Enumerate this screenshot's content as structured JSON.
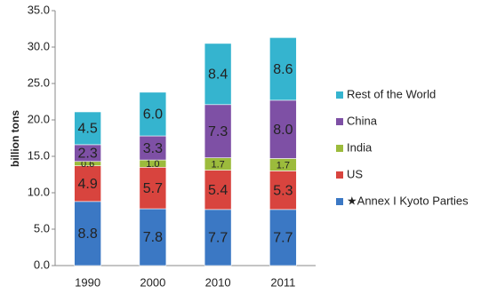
{
  "chart_data": {
    "type": "stacked_bar",
    "y_label": "billion tons",
    "categories": [
      "1990",
      "2000",
      "2010",
      "2011"
    ],
    "ylim": [
      0,
      35
    ],
    "yticks": [
      {
        "value": 0,
        "label": "0.0"
      },
      {
        "value": 5,
        "label": "5.0"
      },
      {
        "value": 10,
        "label": "10.0"
      },
      {
        "value": 15,
        "label": "15.0"
      },
      {
        "value": 20,
        "label": "20.0"
      },
      {
        "value": 25,
        "label": "25.0"
      },
      {
        "value": 30,
        "label": "30.0"
      },
      {
        "value": 35,
        "label": "35.0"
      }
    ],
    "grid": false,
    "series": [
      {
        "name": "★Annex I Kyoto Parties",
        "color": "#3b78c4",
        "values": [
          8.8,
          7.8,
          7.7,
          7.7
        ],
        "value_labels": [
          "8.8",
          "7.8",
          "7.7",
          "7.7"
        ]
      },
      {
        "name": "US",
        "color": "#d8443e",
        "values": [
          4.9,
          5.7,
          5.4,
          5.3
        ],
        "value_labels": [
          "4.9",
          "5.7",
          "5.4",
          "5.3"
        ]
      },
      {
        "name": "India",
        "color": "#9cbb3c",
        "values": [
          0.6,
          1.0,
          1.7,
          1.7
        ],
        "value_labels": [
          "0.6",
          "1.0",
          "1.7",
          "1.7"
        ]
      },
      {
        "name": "China",
        "color": "#7e50a5",
        "values": [
          2.3,
          3.3,
          7.3,
          8.0
        ],
        "value_labels": [
          "2.3",
          "3.3",
          "7.3",
          "8.0"
        ]
      },
      {
        "name": "Rest of the World",
        "color": "#35b4cf",
        "values": [
          4.5,
          6.0,
          8.4,
          8.6
        ],
        "value_labels": [
          "4.5",
          "6.0",
          "8.4",
          "8.6"
        ]
      }
    ]
  }
}
